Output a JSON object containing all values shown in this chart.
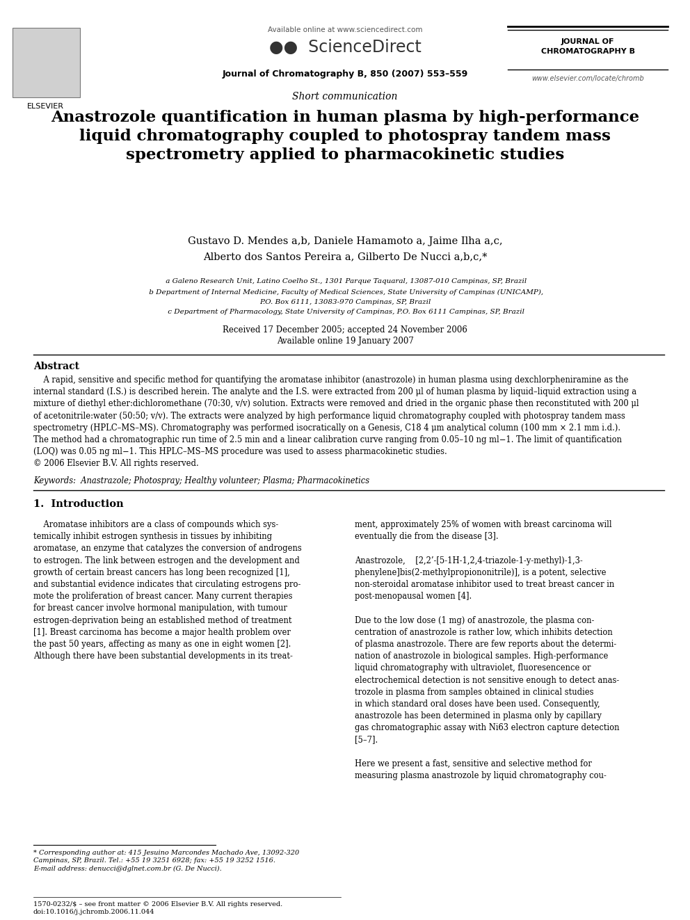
{
  "background_color": "#ffffff",
  "page_width": 9.92,
  "page_height": 13.23,
  "dpi": 100,
  "header": {
    "available_online": "Available online at www.sciencedirect.com",
    "journal_line": "Journal of Chromatography B, 850 (2007) 553–559",
    "journal_name_right": "JOURNAL OF\nCHROMATOGRAPHY B",
    "website_right": "www.elsevier.com/locate/chromb",
    "elsevier_label": "ELSEVIER"
  },
  "article_type": "Short communication",
  "title": "Anastrozole quantification in human plasma by high-performance\nliquid chromatography coupled to photospray tandem mass\nspectrometry applied to pharmacokinetic studies",
  "authors_line1": "Gustavo D. Mendes a,b, Daniele Hamamoto a, Jaime Ilha a,c,",
  "authors_line2": "Alberto dos Santos Pereira a, Gilberto De Nucci a,b,c,*",
  "affiliations": [
    " a Galeno Research Unit, Latino Coelho St., 1301 Parque Taquaral, 13087-010 Campinas, SP, Brazil",
    " b Department of Internal Medicine, Faculty of Medical Sciences, State University of Campinas (UNICAMP),",
    "P.O. Box 6111, 13083-970 Campinas, SP, Brazil",
    " c Department of Pharmacology, State University of Campinas, P.O. Box 6111 Campinas, SP, Brazil"
  ],
  "received": "Received 17 December 2005; accepted 24 November 2006",
  "available_online_date": "Available online 19 January 2007",
  "abstract_title": "Abstract",
  "abstract_text": "    A rapid, sensitive and specific method for quantifying the aromatase inhibitor (anastrozole) in human plasma using dexchlorpheniramine as the\ninternal standard (I.S.) is described herein. The analyte and the I.S. were extracted from 200 μl of human plasma by liquid–liquid extraction using a\nmixture of diethyl ether:dichloromethane (70:30, v/v) solution. Extracts were removed and dried in the organic phase then reconstituted with 200 μl\nof acetonitrile:water (50:50; v/v). The extracts were analyzed by high performance liquid chromatography coupled with photospray tandem mass\nspectrometry (HPLC–MS–MS). Chromatography was performed isocratically on a Genesis, C18 4 μm analytical column (100 mm × 2.1 mm i.d.).\nThe method had a chromatographic run time of 2.5 min and a linear calibration curve ranging from 0.05–10 ng ml−1. The limit of quantification\n(LOQ) was 0.05 ng ml−1. This HPLC–MS–MS procedure was used to assess pharmacokinetic studies.\n© 2006 Elsevier B.V. All rights reserved.",
  "keywords": "Keywords:  Anastrazole; Photospray; Healthy volunteer; Plasma; Pharmacokinetics",
  "section1_title": "1.  Introduction",
  "section1_col1": "    Aromatase inhibitors are a class of compounds which sys-\ntemically inhibit estrogen synthesis in tissues by inhibiting\naromatase, an enzyme that catalyzes the conversion of androgens\nto estrogen. The link between estrogen and the development and\ngrowth of certain breast cancers has long been recognized [1],\nand substantial evidence indicates that circulating estrogens pro-\nmote the proliferation of breast cancer. Many current therapies\nfor breast cancer involve hormonal manipulation, with tumour\nestrogen-deprivation being an established method of treatment\n[1]. Breast carcinoma has become a major health problem over\nthe past 50 years, affecting as many as one in eight women [2].\nAlthough there have been substantial developments in its treat-",
  "section1_col2": "ment, approximately 25% of women with breast carcinoma will\neventually die from the disease [3].\n\nAnastrozole,    [2,2’-[5-1H-1,2,4-triazole-1-y-methyl)-1,3-\nphenylene]bis(2-methylpropiononitrile)], is a potent, selective\nnon-steroidal aromatase inhibitor used to treat breast cancer in\npost-menopausal women [4].\n\nDue to the low dose (1 mg) of anastrozole, the plasma con-\ncentration of anastrozole is rather low, which inhibits detection\nof plasma anastrozole. There are few reports about the determi-\nnation of anastrozole in biological samples. High-performance\nliquid chromatography with ultraviolet, fluoresencence or\nelectrochemical detection is not sensitive enough to detect anas-\ntrozole in plasma from samples obtained in clinical studies\nin which standard oral doses have been used. Consequently,\nanastrozole has been determined in plasma only by capillary\ngas chromatographic assay with Ni63 electron capture detection\n[5–7].\n\nHere we present a fast, sensitive and selective method for\nmeasuring plasma anastrozole by liquid chromatography cou-",
  "footnote_star": "* Corresponding author at: 415 Jesuino Marcondes Machado Ave, 13092-320\nCampinas, SP, Brazil. Tel.: +55 19 3251 6928; fax: +55 19 3252 1516.\nE-mail address: denucci@dglnet.com.br (G. De Nucci).",
  "footer_left": "1570-0232/$ – see front matter © 2006 Elsevier B.V. All rights reserved.\ndoi:10.1016/j.jchromb.2006.11.044"
}
